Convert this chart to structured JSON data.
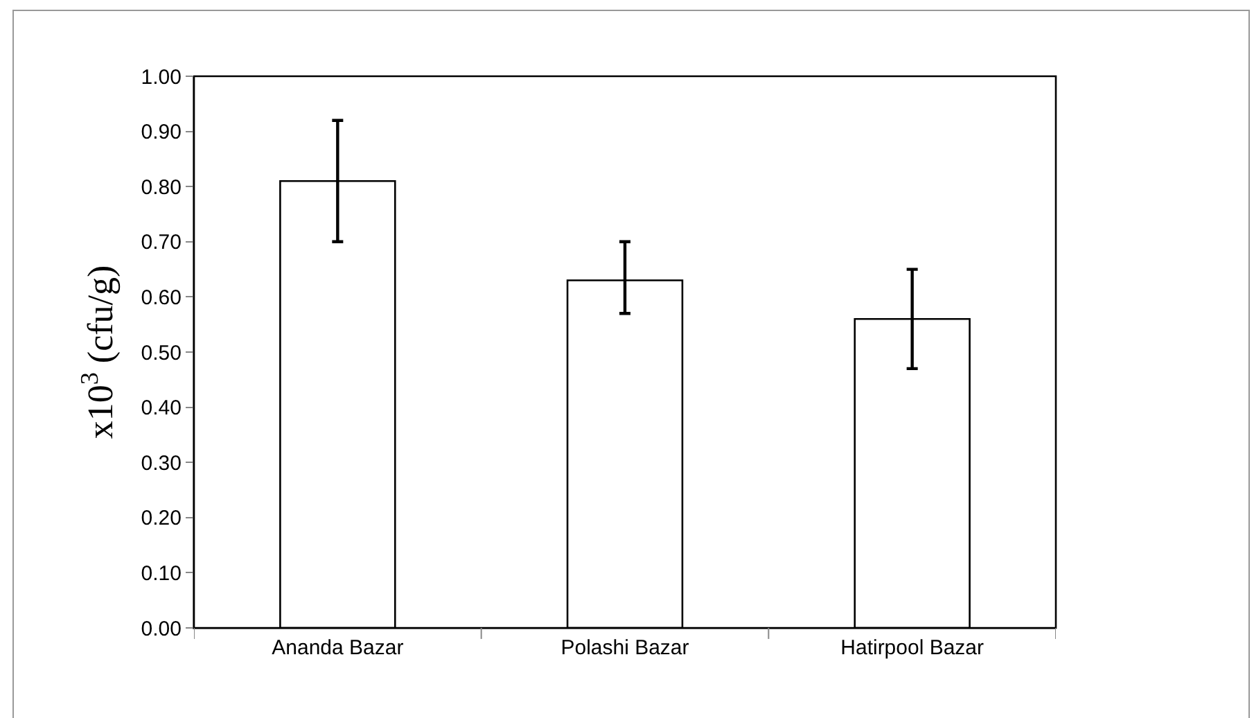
{
  "chart_data": {
    "type": "bar",
    "ylabel": "x10$^{3}$ (cfu/g)",
    "categories": [
      "Ananda Bazar",
      "Polashi Bazar",
      "Hatirpool Bazar"
    ],
    "values": [
      0.81,
      0.63,
      0.56
    ],
    "errors": [
      [
        0.7,
        0.92
      ],
      [
        0.57,
        0.7
      ],
      [
        0.47,
        0.65
      ]
    ],
    "color": "#ffffff",
    "ylim": [
      0,
      1
    ],
    "yticks": [
      {
        "value": 0,
        "label": "0.00"
      },
      {
        "value": 0.1,
        "label": "0.10"
      },
      {
        "value": 0.2,
        "label": "0.20"
      },
      {
        "value": 0.3,
        "label": "0.30"
      },
      {
        "value": 0.4,
        "label": "0.40"
      },
      {
        "value": 0.5,
        "label": "0.50"
      },
      {
        "value": 0.6,
        "label": "0.60"
      },
      {
        "value": 0.7,
        "label": "0.70"
      },
      {
        "value": 0.8,
        "label": "0.80"
      },
      {
        "value": 0.9,
        "label": "0.90"
      },
      {
        "value": 1,
        "label": "1.00"
      }
    ],
    "grid": false,
    "legend": false
  }
}
